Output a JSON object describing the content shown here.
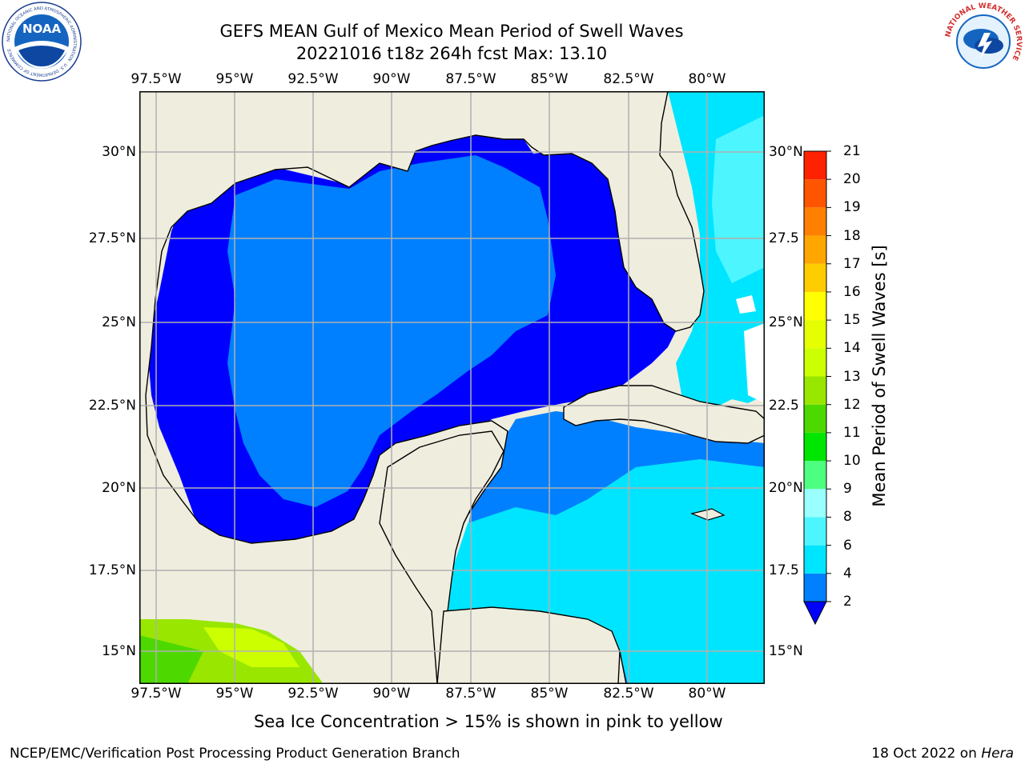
{
  "title": {
    "line1": "GEFS MEAN Gulf of Mexico Mean Period of Swell Waves",
    "line2": "20221016 t18z 264h fcst   Max: 13.10"
  },
  "map": {
    "lon_ticks": [
      "97.5°W",
      "95°W",
      "92.5°W",
      "90°W",
      "87.5°W",
      "85°W",
      "82.5°W",
      "80°W"
    ],
    "lat_ticks_left": [
      "30°N",
      "27.5°N",
      "25°N",
      "22.5°N",
      "20°N",
      "17.5°N",
      "15°N"
    ],
    "lat_ticks_right": [
      "30°N",
      "27.5",
      "25°N",
      "22.5",
      "20°N",
      "17.5",
      "15°N"
    ],
    "extent": {
      "lon": [
        -98,
        -78
      ],
      "lat": [
        14,
        31.5
      ]
    }
  },
  "colorbar": {
    "label": "Mean Period of Swell Waves [s]",
    "levels": [
      "2",
      "4",
      "6",
      "8",
      "9",
      "10",
      "11",
      "12",
      "13",
      "14",
      "15",
      "16",
      "17",
      "18",
      "19",
      "20",
      "21"
    ],
    "colors": [
      "#0080ff",
      "#00e5ff",
      "#4df5ff",
      "#99ffff",
      "#4dff80",
      "#00e600",
      "#4dd900",
      "#99e600",
      "#ccff00",
      "#e6ff00",
      "#ffff00",
      "#ffcc00",
      "#ffa600",
      "#ff8000",
      "#ff5500",
      "#ff2200"
    ],
    "under_color": "#0000ff"
  },
  "footer": {
    "note": "Sea Ice Concentration > 15% is shown in pink to yellow",
    "left": "NCEP/EMC/Verification Post Processing Product Generation Branch",
    "date": "18 Oct 2022 on ",
    "machine": "Hera"
  },
  "logos": {
    "noaa_text": "NOAA",
    "noaa_ring": "NATIONAL OCEANIC AND ATMOSPHERIC ADMINISTRATION · U.S. DEPARTMENT OF COMMERCE",
    "nws_ring": "NATIONAL WEATHER SERVICE"
  }
}
